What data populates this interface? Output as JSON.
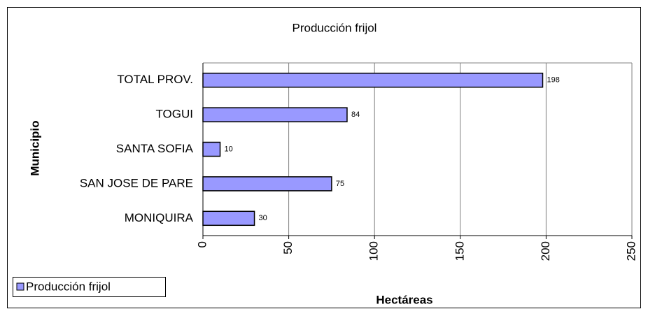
{
  "chart_data": {
    "type": "bar",
    "orientation": "horizontal",
    "title": "Producción frijol",
    "x_label": "Hectáreas",
    "y_label": "Municipio",
    "categories": [
      "MONIQUIRA",
      "SAN JOSE DE PARE",
      "SANTA SOFIA",
      "TOGUI",
      "TOTAL PROV."
    ],
    "series": [
      {
        "name": "Producción frijol",
        "color": "#9999ff",
        "values": [
          30,
          75,
          10,
          84,
          198
        ]
      }
    ],
    "xlim": [
      0,
      250
    ],
    "xticks": [
      0,
      50,
      100,
      150,
      200,
      250
    ],
    "grid": true,
    "legend": "bottom-left"
  }
}
